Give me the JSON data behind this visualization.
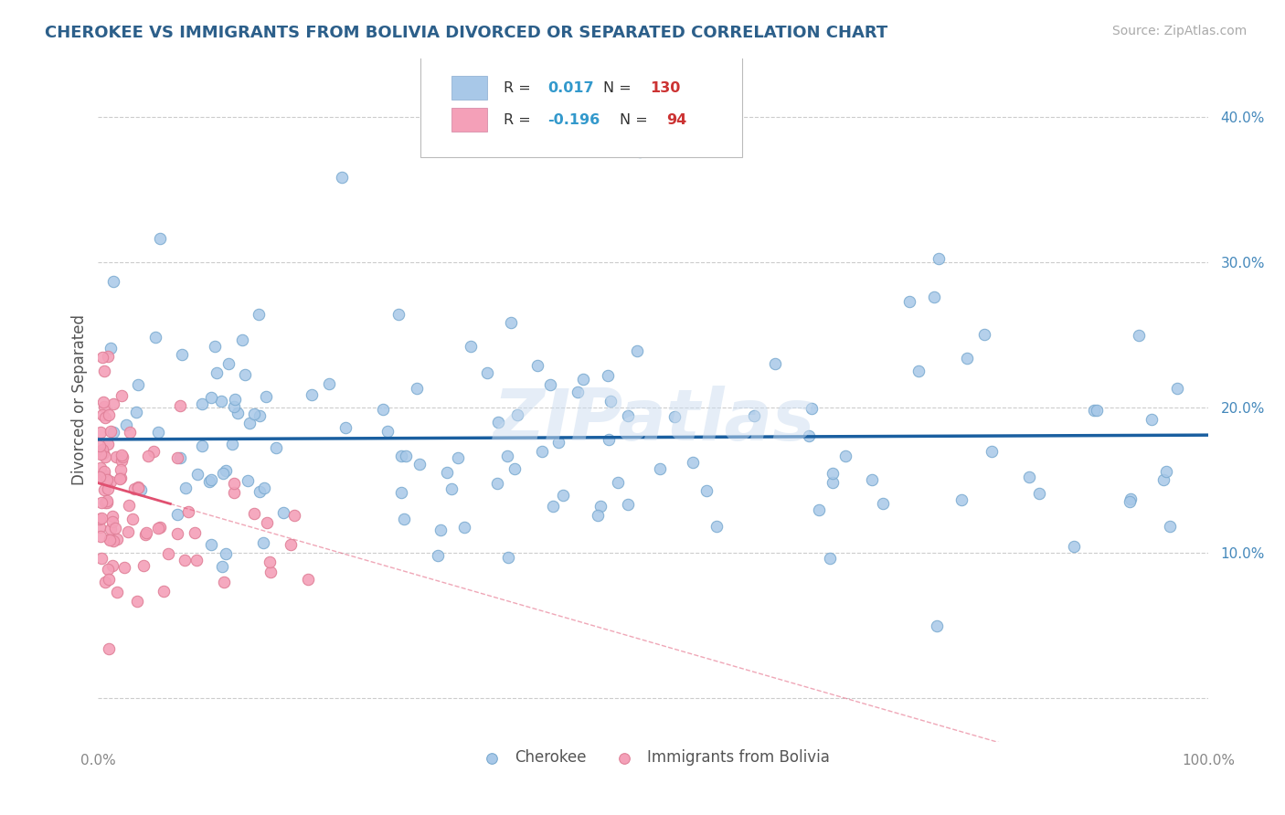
{
  "title": "CHEROKEE VS IMMIGRANTS FROM BOLIVIA DIVORCED OR SEPARATED CORRELATION CHART",
  "source_text": "Source: ZipAtlas.com",
  "ylabel": "Divorced or Separated",
  "xlim": [
    0.0,
    1.0
  ],
  "ylim": [
    -0.03,
    0.44
  ],
  "yticks": [
    0.0,
    0.1,
    0.2,
    0.3,
    0.4
  ],
  "ytick_labels": [
    "",
    "10.0%",
    "20.0%",
    "30.0%",
    "40.0%"
  ],
  "watermark": "ZIPatlas",
  "blue_scatter_color": "#a8c8e8",
  "pink_scatter_color": "#f4a0b8",
  "blue_line_color": "#1a5fa0",
  "pink_line_color": "#e05070",
  "blue_dot_edge": "#7aaad0",
  "pink_dot_edge": "#e08098",
  "background_color": "#ffffff",
  "grid_color": "#cccccc",
  "title_color": "#2c5f8a",
  "legend_box_blue": "#a8c8e8",
  "legend_box_pink": "#f4a0b8",
  "N_blue": 130,
  "N_pink": 94,
  "blue_regression_intercept": 0.178,
  "blue_regression_slope": 0.003,
  "pink_regression_intercept": 0.148,
  "pink_regression_slope": -0.22
}
